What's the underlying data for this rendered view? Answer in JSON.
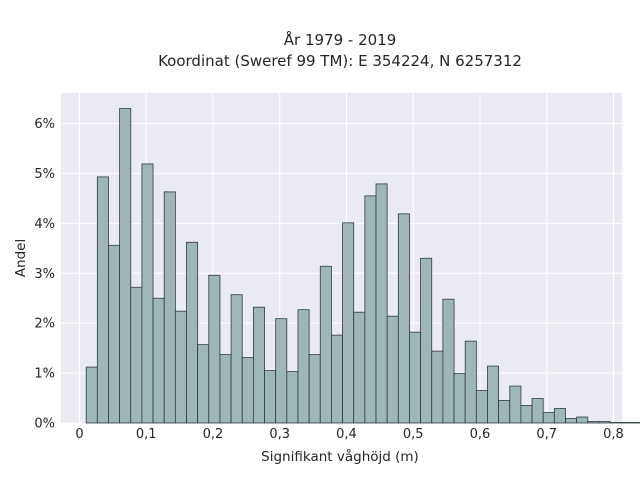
{
  "chart_data": {
    "type": "bar",
    "title": "År 1979 - 2019",
    "subtitle": "Koordinat (Sweref 99 TM): E 354224, N 6257312",
    "xlabel": "Signifikant våghöjd (m)",
    "ylabel": "Andel",
    "xlim": [
      -0.02,
      0.8
    ],
    "ylim": [
      0,
      6.6
    ],
    "x_ticks": [
      0,
      0.1,
      0.2,
      0.3,
      0.4,
      0.5,
      0.6,
      0.7,
      0.8
    ],
    "x_tick_labels": [
      "0",
      "0,1",
      "0,2",
      "0,3",
      "0,4",
      "0,5",
      "0,6",
      "0,7",
      "0,8"
    ],
    "y_ticks": [
      0,
      1,
      2,
      3,
      4,
      5,
      6
    ],
    "y_tick_labels": [
      "0%",
      "1%",
      "2%",
      "3%",
      "4%",
      "5%",
      "6%"
    ],
    "bin_width": 0.0167,
    "bin_start": 0.01,
    "values": [
      1.12,
      4.93,
      3.56,
      6.3,
      2.72,
      5.19,
      2.5,
      4.63,
      2.24,
      3.62,
      1.57,
      2.96,
      1.37,
      2.57,
      1.31,
      2.32,
      1.05,
      2.09,
      1.03,
      2.27,
      1.37,
      3.14,
      1.76,
      4.01,
      2.22,
      4.55,
      4.79,
      2.14,
      4.19,
      1.82,
      3.3,
      1.44,
      2.48,
      0.99,
      1.64,
      0.65,
      1.14,
      0.45,
      0.74,
      0.35,
      0.49,
      0.21,
      0.29,
      0.09,
      0.12,
      0.03,
      0.03,
      0.01,
      0.01,
      0.01
    ],
    "grid": true,
    "colors": {
      "bar_fill": "#9fb6b6",
      "bar_edge": "#2f3d3d",
      "plot_bg": "#eaeaf2",
      "grid": "#ffffff"
    }
  }
}
